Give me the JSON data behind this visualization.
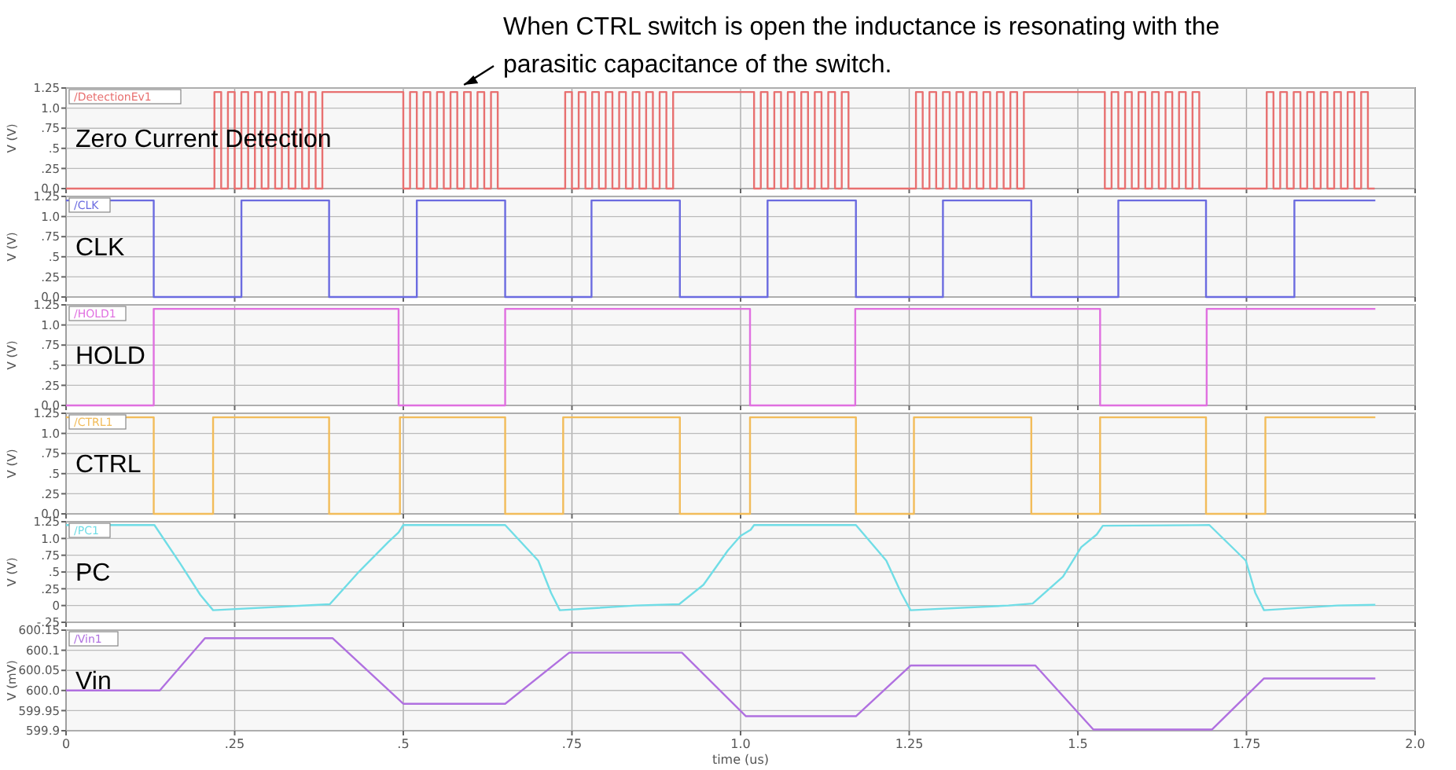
{
  "chart_data": [
    {
      "type": "step",
      "title": "Zero Current Detection",
      "ylabel": "V (V)",
      "annotations": [
        "When CTRL switch is open the inductance is resonating with the parasitic capacitance of the switch."
      ],
      "legend": "top left",
      "grid": true,
      "tick_labels": "y",
      "xlim": [
        0,
        2
      ],
      "xticks": [
        {
          "value": 0,
          "label": null
        },
        {
          "value": 0.25,
          "label": null
        },
        {
          "value": 0.5,
          "label": null
        },
        {
          "value": 0.75,
          "label": null
        },
        {
          "value": 1,
          "label": null
        },
        {
          "value": 1.25,
          "label": null
        },
        {
          "value": 1.5,
          "label": null
        },
        {
          "value": 1.75,
          "label": null
        },
        {
          "value": 2,
          "label": null
        }
      ],
      "ylim": [
        0,
        1.25
      ],
      "yticks": [
        {
          "value": 0,
          "label": "0.0"
        },
        {
          "value": 0.25,
          "label": ".25"
        },
        {
          "value": 0.5,
          "label": ".5"
        },
        {
          "value": 0.75,
          "label": ".75"
        },
        {
          "value": 1,
          "label": "1.0"
        },
        1.25
      ],
      "series": [
        {
          "name": "/DetectionEv1",
          "color": "#e87070",
          "x": [
            0,
            0.22,
            0.23,
            0.24,
            0.25,
            0.26,
            0.27,
            0.28,
            0.29,
            0.3,
            0.31,
            0.32,
            0.33,
            0.34,
            0.35,
            0.36,
            0.37,
            0.38,
            0.5,
            0.51,
            0.52,
            0.53,
            0.54,
            0.55,
            0.56,
            0.57,
            0.58,
            0.59,
            0.6,
            0.61,
            0.62,
            0.63,
            0.64,
            0.74,
            0.75,
            0.76,
            0.77,
            0.78,
            0.79,
            0.8,
            0.81,
            0.82,
            0.83,
            0.84,
            0.85,
            0.86,
            0.87,
            0.88,
            0.89,
            0.9,
            1.02,
            1.03,
            1.04,
            1.05,
            1.06,
            1.07,
            1.08,
            1.09,
            1.1,
            1.11,
            1.12,
            1.13,
            1.14,
            1.15,
            1.16,
            1.26,
            1.27,
            1.28,
            1.29,
            1.3,
            1.31,
            1.32,
            1.33,
            1.34,
            1.35,
            1.36,
            1.37,
            1.38,
            1.39,
            1.4,
            1.41,
            1.42,
            1.54,
            1.55,
            1.56,
            1.57,
            1.58,
            1.59,
            1.6,
            1.61,
            1.62,
            1.63,
            1.64,
            1.65,
            1.66,
            1.67,
            1.68,
            1.78,
            1.79,
            1.8,
            1.81,
            1.82,
            1.83,
            1.84,
            1.85,
            1.86,
            1.87,
            1.88,
            1.89,
            1.9,
            1.91,
            1.92,
            1.93,
            1.94
          ],
          "values": [
            0,
            1.2,
            0,
            1.2,
            0,
            1.2,
            0,
            1.2,
            0,
            1.2,
            0,
            1.2,
            0,
            1.2,
            0,
            1.2,
            0,
            1.2,
            0,
            1.2,
            0,
            1.2,
            0,
            1.2,
            0,
            1.2,
            0,
            1.2,
            0,
            1.2,
            0,
            1.2,
            0,
            1.2,
            0,
            1.2,
            0,
            1.2,
            0,
            1.2,
            0,
            1.2,
            0,
            1.2,
            0,
            1.2,
            0,
            1.2,
            0,
            1.2,
            0,
            1.2,
            0,
            1.2,
            0,
            1.2,
            0,
            1.2,
            0,
            1.2,
            0,
            1.2,
            0,
            1.2,
            0,
            1.2,
            0,
            1.2,
            0,
            1.2,
            0,
            1.2,
            0,
            1.2,
            0,
            1.2,
            0,
            1.2,
            0,
            1.2,
            0,
            1.2,
            0,
            1.2,
            0,
            1.2,
            0,
            1.2,
            0,
            1.2,
            0,
            1.2,
            0,
            1.2,
            0,
            1.2,
            0,
            1.2,
            0,
            1.2,
            0,
            1.2,
            0,
            1.2,
            0,
            1.2,
            0,
            1.2,
            0,
            1.2,
            0,
            1.2,
            0,
            0
          ]
        }
      ]
    },
    {
      "type": "step",
      "title": "CLK",
      "ylabel": "V (V)",
      "legend": "top left",
      "grid": true,
      "tick_labels": "y",
      "xlim": [
        0,
        2
      ],
      "xticks": [
        {
          "value": 0,
          "label": null
        },
        {
          "value": 0.25,
          "label": null
        },
        {
          "value": 0.5,
          "label": null
        },
        {
          "value": 0.75,
          "label": null
        },
        {
          "value": 1,
          "label": null
        },
        {
          "value": 1.25,
          "label": null
        },
        {
          "value": 1.5,
          "label": null
        },
        {
          "value": 1.75,
          "label": null
        },
        {
          "value": 2,
          "label": null
        }
      ],
      "ylim": [
        0,
        1.25
      ],
      "yticks": [
        {
          "value": 0,
          "label": "0.0"
        },
        {
          "value": 0.25,
          "label": ".25"
        },
        {
          "value": 0.5,
          "label": ".5"
        },
        {
          "value": 0.75,
          "label": ".75"
        },
        {
          "value": 1,
          "label": "1.0"
        },
        1.25
      ],
      "series": [
        {
          "name": "/CLK",
          "color": "#6b6be0",
          "x": [
            0,
            0.13,
            0.26,
            0.39,
            0.52,
            0.651,
            0.779,
            0.91,
            1.04,
            1.171,
            1.3,
            1.431,
            1.56,
            1.69,
            1.821,
            1.941
          ],
          "values": [
            1.2,
            0,
            1.2,
            0,
            1.2,
            0,
            1.2,
            0,
            1.2,
            0,
            1.2,
            0,
            1.2,
            0,
            1.2,
            1.2
          ]
        }
      ]
    },
    {
      "type": "step",
      "title": "HOLD",
      "ylabel": "V (V)",
      "legend": "top left",
      "grid": true,
      "tick_labels": "y",
      "xlim": [
        0,
        2
      ],
      "xticks": [
        {
          "value": 0,
          "label": null
        },
        {
          "value": 0.25,
          "label": null
        },
        {
          "value": 0.5,
          "label": null
        },
        {
          "value": 0.75,
          "label": null
        },
        {
          "value": 1,
          "label": null
        },
        {
          "value": 1.25,
          "label": null
        },
        {
          "value": 1.5,
          "label": null
        },
        {
          "value": 1.75,
          "label": null
        },
        {
          "value": 2,
          "label": null
        }
      ],
      "ylim": [
        0,
        1.25
      ],
      "yticks": [
        {
          "value": 0,
          "label": "0.0"
        },
        {
          "value": 0.25,
          "label": ".25"
        },
        {
          "value": 0.5,
          "label": ".5"
        },
        {
          "value": 0.75,
          "label": ".75"
        },
        {
          "value": 1,
          "label": "1.0"
        },
        1.25
      ],
      "series": [
        {
          "name": "/HOLD1",
          "color": "#e070e0",
          "x": [
            0,
            0.13,
            0.493,
            0.651,
            1.014,
            1.17,
            1.533,
            1.691,
            1.941
          ],
          "values": [
            0,
            1.2,
            0,
            1.2,
            0,
            1.2,
            0,
            1.2,
            1.2
          ]
        }
      ]
    },
    {
      "type": "step",
      "title": "CTRL",
      "ylabel": "V (V)",
      "legend": "top left",
      "grid": true,
      "tick_labels": "y",
      "xlim": [
        0,
        2
      ],
      "xticks": [
        {
          "value": 0,
          "label": null
        },
        {
          "value": 0.25,
          "label": null
        },
        {
          "value": 0.5,
          "label": null
        },
        {
          "value": 0.75,
          "label": null
        },
        {
          "value": 1,
          "label": null
        },
        {
          "value": 1.25,
          "label": null
        },
        {
          "value": 1.5,
          "label": null
        },
        {
          "value": 1.75,
          "label": null
        },
        {
          "value": 2,
          "label": null
        }
      ],
      "ylim": [
        0,
        1.25
      ],
      "yticks": [
        {
          "value": 0,
          "label": "0.0"
        },
        {
          "value": 0.25,
          "label": ".25"
        },
        {
          "value": 0.5,
          "label": ".5"
        },
        {
          "value": 0.75,
          "label": ".75"
        },
        {
          "value": 1,
          "label": "1.0"
        },
        1.25
      ],
      "series": [
        {
          "name": "/CTRL1",
          "color": "#f2bc5a",
          "x": [
            0,
            0.13,
            0.218,
            0.39,
            0.495,
            0.651,
            0.737,
            0.91,
            1.014,
            1.171,
            1.257,
            1.431,
            1.533,
            1.69,
            1.778,
            1.941
          ],
          "values": [
            1.2,
            0,
            1.2,
            0,
            1.2,
            0,
            1.2,
            0,
            1.2,
            0,
            1.2,
            0,
            1.2,
            0,
            1.2,
            1.2
          ]
        }
      ]
    },
    {
      "type": "line",
      "title": "PC",
      "ylabel": "V (V)",
      "legend": "top left",
      "grid": true,
      "tick_labels": "y",
      "xlim": [
        0,
        2
      ],
      "xticks": [
        {
          "value": 0,
          "label": null
        },
        {
          "value": 0.25,
          "label": null
        },
        {
          "value": 0.5,
          "label": null
        },
        {
          "value": 0.75,
          "label": null
        },
        {
          "value": 1,
          "label": null
        },
        {
          "value": 1.25,
          "label": null
        },
        {
          "value": 1.5,
          "label": null
        },
        {
          "value": 1.75,
          "label": null
        },
        {
          "value": 2,
          "label": null
        }
      ],
      "ylim": [
        -0.25,
        1.25
      ],
      "yticks": [
        {
          "value": -0.25,
          "label": "-.25"
        },
        0,
        {
          "value": 0.25,
          "label": ".25"
        },
        {
          "value": 0.5,
          "label": ".5"
        },
        {
          "value": 0.75,
          "label": ".75"
        },
        {
          "value": 1,
          "label": "1.0"
        },
        1.25
      ],
      "series": [
        {
          "name": "/PC1",
          "color": "#70dde6",
          "x": [
            0,
            0.131,
            0.169,
            0.199,
            0.218,
            0.391,
            0.432,
            0.478,
            0.493,
            0.5,
            0.651,
            0.7,
            0.719,
            0.732,
            0.845,
            0.909,
            0.945,
            0.981,
            1.0,
            1.015,
            1.02,
            1.171,
            1.216,
            1.238,
            1.252,
            1.397,
            1.433,
            1.478,
            1.505,
            1.528,
            1.537,
            1.695,
            1.749,
            1.763,
            1.776,
            1.885,
            1.941
          ],
          "values": [
            1.2,
            1.2,
            0.63,
            0.16,
            -0.07,
            0.02,
            0.48,
            0.95,
            1.09,
            1.2,
            1.2,
            0.67,
            0.19,
            -0.07,
            0,
            0.02,
            0.31,
            0.82,
            1.04,
            1.13,
            1.2,
            1.2,
            0.67,
            0.19,
            -0.07,
            0,
            0.03,
            0.43,
            0.87,
            1.06,
            1.19,
            1.2,
            0.67,
            0.19,
            -0.07,
            0,
            0.01
          ]
        }
      ]
    },
    {
      "type": "line",
      "title": "Vin",
      "ylabel": "V (mV)",
      "xlabel": "time (us)",
      "legend": "top left",
      "grid": true,
      "xlim": [
        0,
        2
      ],
      "xticks": [
        0,
        {
          "value": 0.25,
          "label": ".25"
        },
        {
          "value": 0.5,
          "label": ".5"
        },
        {
          "value": 0.75,
          "label": ".75"
        },
        {
          "value": 1,
          "label": "1.0"
        },
        1.25,
        1.5,
        1.75,
        {
          "value": 2,
          "label": "2.0"
        }
      ],
      "ylim": [
        599.9,
        600.15
      ],
      "yticks": [
        599.9,
        599.95,
        {
          "value": 600,
          "label": "600.0"
        },
        600.05,
        600.1,
        600.15
      ],
      "series": [
        {
          "name": "/Vin1",
          "color": "#b070e0",
          "x": [
            0,
            0.139,
            0.206,
            0.395,
            0.5,
            0.651,
            0.746,
            0.913,
            1.008,
            1.171,
            1.252,
            1.437,
            1.523,
            1.699,
            1.776,
            1.941
          ],
          "values": [
            600,
            600,
            600.13,
            600.13,
            599.967,
            599.967,
            600.094,
            600.094,
            599.936,
            599.936,
            600.062,
            600.062,
            599.903,
            599.903,
            600.03,
            600.03
          ]
        }
      ]
    }
  ]
}
